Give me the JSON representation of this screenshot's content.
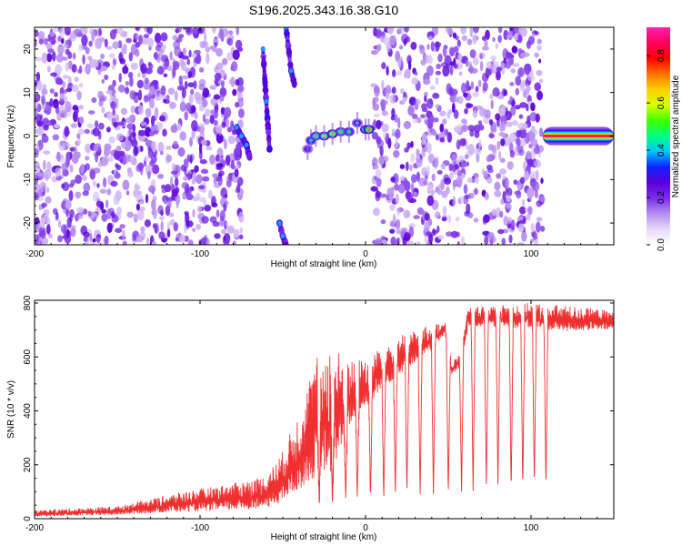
{
  "title": "S196.2025.343.16.38.G10",
  "chart_data": [
    {
      "type": "heatmap",
      "xlabel": "Height of straight line (km)",
      "ylabel": "Frequency (Hz)",
      "xlim": [
        -200,
        150
      ],
      "ylim": [
        -25,
        25
      ],
      "xticks": [
        -200,
        -100,
        0,
        100
      ],
      "yticks": [
        -20,
        -10,
        0,
        10,
        20
      ],
      "colorbar": {
        "label": "Normalized spectral amplitude",
        "range": [
          0,
          0.92
        ],
        "ticks": [
          0.0,
          0.2,
          0.4,
          0.6,
          0.8
        ],
        "colormap": [
          "#ffffff",
          "#e8d8f8",
          "#b58df0",
          "#7a2ee8",
          "#5a00d8",
          "#1020ff",
          "#00c8ff",
          "#00ff80",
          "#40ff00",
          "#d8ff00",
          "#ffd000",
          "#ff7000",
          "#ff0000",
          "#ff0060",
          "#ff20b0"
        ]
      },
      "noise_regions_km": [
        [
          -200,
          -75
        ],
        [
          5,
          107
        ]
      ],
      "gap_regions_km": [
        [
          -75,
          -5
        ]
      ],
      "ridge_traces": [
        {
          "x": [
            -78,
            -75,
            -72,
            -70
          ],
          "y": [
            2,
            0,
            -2,
            -5
          ]
        },
        {
          "x": [
            -62,
            -60,
            -58
          ],
          "y": [
            20,
            8,
            -3
          ]
        },
        {
          "x": [
            -48,
            -45,
            -43
          ],
          "y": [
            25,
            15,
            12
          ]
        },
        {
          "x": [
            -52,
            -50,
            -48
          ],
          "y": [
            -20,
            -23,
            -25
          ]
        }
      ],
      "blob_points": [
        {
          "x": -35,
          "y": -3,
          "v": 0.35
        },
        {
          "x": -33,
          "y": -1,
          "v": 0.45
        },
        {
          "x": -30,
          "y": 0,
          "v": 0.55
        },
        {
          "x": -25,
          "y": 0,
          "v": 0.6
        },
        {
          "x": -20,
          "y": 0.5,
          "v": 0.65
        },
        {
          "x": -15,
          "y": 1,
          "v": 0.55
        },
        {
          "x": -10,
          "y": 1,
          "v": 0.5
        },
        {
          "x": -5,
          "y": 3,
          "v": 0.4
        },
        {
          "x": 0,
          "y": 1.5,
          "v": 0.6
        },
        {
          "x": 2,
          "y": 1.5,
          "v": 0.7
        }
      ],
      "band": {
        "x": [
          107,
          150
        ],
        "y": 0,
        "peak": 0.92
      }
    },
    {
      "type": "line",
      "xlabel": "Height of straight line (km)",
      "ylabel": "SNR (10 * v/v)",
      "xlim": [
        -200,
        150
      ],
      "ylim": [
        0,
        810
      ],
      "xticks": [
        -200,
        -100,
        0,
        100
      ],
      "yticks": [
        0,
        200,
        400,
        600,
        800
      ],
      "color": "#f03030",
      "envelope": [
        {
          "x": -200,
          "lo": 5,
          "hi": 30
        },
        {
          "x": -150,
          "lo": 10,
          "hi": 45
        },
        {
          "x": -110,
          "lo": 15,
          "hi": 100
        },
        {
          "x": -80,
          "lo": 15,
          "hi": 130
        },
        {
          "x": -60,
          "lo": 20,
          "hi": 160
        },
        {
          "x": -50,
          "lo": 30,
          "hi": 250
        },
        {
          "x": -40,
          "lo": 60,
          "hi": 400
        },
        {
          "x": -30,
          "lo": 80,
          "hi": 600
        },
        {
          "x": -20,
          "lo": 100,
          "hi": 650
        },
        {
          "x": -10,
          "lo": 300,
          "hi": 580
        },
        {
          "x": 0,
          "lo": 380,
          "hi": 600
        },
        {
          "x": 10,
          "lo": 450,
          "hi": 640
        },
        {
          "x": 20,
          "lo": 510,
          "hi": 680
        },
        {
          "x": 30,
          "lo": 560,
          "hi": 700
        },
        {
          "x": 40,
          "lo": 600,
          "hi": 720
        },
        {
          "x": 48,
          "lo": 680,
          "hi": 730
        },
        {
          "x": 52,
          "lo": 520,
          "hi": 580
        },
        {
          "x": 58,
          "lo": 560,
          "hi": 620
        },
        {
          "x": 62,
          "lo": 700,
          "hi": 790
        },
        {
          "x": 80,
          "lo": 700,
          "hi": 790
        },
        {
          "x": 100,
          "lo": 690,
          "hi": 800
        },
        {
          "x": 120,
          "lo": 680,
          "hi": 790
        },
        {
          "x": 150,
          "lo": 690,
          "hi": 770
        }
      ],
      "dropouts": [
        {
          "x": -28,
          "min": 45
        },
        {
          "x": -20,
          "min": 60
        },
        {
          "x": -12,
          "min": 70
        },
        {
          "x": -5,
          "min": 75
        },
        {
          "x": 3,
          "min": 70
        },
        {
          "x": 11,
          "min": 65
        },
        {
          "x": 18,
          "min": 80
        },
        {
          "x": 25,
          "min": 90
        },
        {
          "x": 33,
          "min": 85
        },
        {
          "x": 41,
          "min": 80
        },
        {
          "x": 50,
          "min": 90
        },
        {
          "x": 58,
          "min": 100
        },
        {
          "x": 65,
          "min": 100
        },
        {
          "x": 73,
          "min": 110
        },
        {
          "x": 80,
          "min": 110
        },
        {
          "x": 88,
          "min": 100
        },
        {
          "x": 95,
          "min": 110
        },
        {
          "x": 102,
          "min": 120
        },
        {
          "x": 109,
          "min": 110
        }
      ]
    }
  ]
}
